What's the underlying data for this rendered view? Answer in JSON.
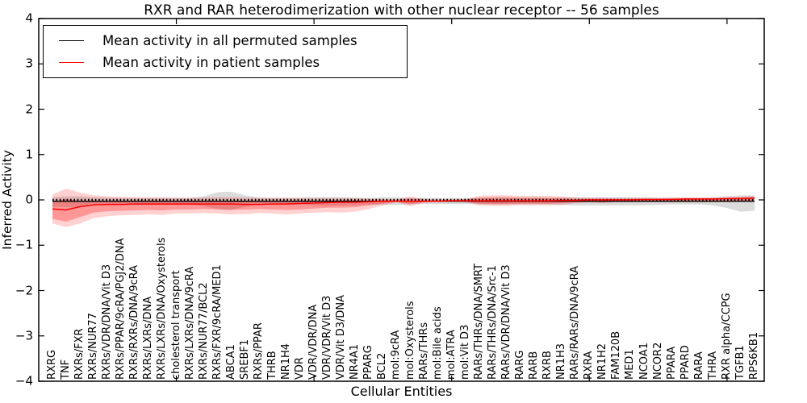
{
  "chart_data": {
    "type": "line",
    "title": "RXR and RAR heterodimerization with other nuclear receptor -- 56 samples",
    "xlabel": "Cellular Entities",
    "ylabel": "Inferred Activity",
    "ylim": [
      -4,
      4
    ],
    "ytick_labels": [
      "4",
      "3",
      "2",
      "1",
      "0",
      "−1",
      "−2",
      "−3",
      "−4"
    ],
    "ytick_values": [
      4,
      3,
      2,
      1,
      0,
      -1,
      -2,
      -3,
      -4
    ],
    "xtick_positions": [
      10,
      20,
      30,
      40,
      50
    ],
    "grid": false,
    "legend_position": "upper left",
    "categories": [
      "RXRG",
      "TNF",
      "RXRs/FXR",
      "RXRs/NUR77",
      "RXRs/VDR/DNA/Vit D3",
      "RXRs/PPAR/9cRA/PGJ2/DNA",
      "RXRs/RXRs/DNA/9cRA",
      "RXRs/LXRs/DNA",
      "RXRs/LXRs/DNA/Oxysterols",
      "cholesterol transport",
      "RXRs/LXRs/DNA/9cRA",
      "RXRs/NUR77/BCL2",
      "RXRs/FXR/9cRA/MED1",
      "ABCA1",
      "SREBF1",
      "RXRs/PPAR",
      "THRB",
      "NR1H4",
      "VDR",
      "VDR/VDR/DNA",
      "VDR/VDR/Vit D3",
      "VDR/Vit D3/DNA",
      "NR4A1",
      "PPARG",
      "BCL2",
      "mol:9cRA",
      "mol:Oxysterols",
      "RARs/THRs",
      "mol:Bile acids",
      "mol:ATRA",
      "mol:Vit D3",
      "RARs/THRs/DNA/SMRT",
      "RARs/THRs/DNA/Src-1",
      "RARs/VDR/DNA/Vit D3",
      "RARG",
      "RARB",
      "RXRB",
      "NR1H3",
      "RARs/RARs/DNA/9cRA",
      "RXRA",
      "NR1H2",
      "FAM120B",
      "MED1",
      "NCOA1",
      "NCOR2",
      "PPARA",
      "PPARD",
      "RARA",
      "THRA",
      "RXR alpha/CCPG",
      "TGFB1",
      "RPS6KB1"
    ],
    "series": [
      {
        "name": "Mean activity in all permuted samples",
        "color": "#000000",
        "values": [
          -0.03,
          -0.03,
          -0.03,
          -0.03,
          -0.03,
          -0.03,
          -0.03,
          -0.03,
          -0.03,
          -0.03,
          -0.03,
          -0.03,
          -0.03,
          -0.03,
          -0.03,
          -0.03,
          -0.03,
          -0.03,
          -0.03,
          -0.03,
          -0.03,
          -0.03,
          -0.03,
          -0.03,
          -0.03,
          -0.03,
          -0.03,
          -0.03,
          -0.03,
          -0.03,
          -0.03,
          -0.03,
          -0.03,
          -0.03,
          -0.03,
          -0.03,
          -0.03,
          -0.03,
          -0.03,
          -0.03,
          -0.03,
          -0.03,
          -0.03,
          -0.03,
          -0.03,
          -0.03,
          -0.03,
          -0.03,
          -0.03,
          -0.03,
          -0.03,
          -0.03
        ]
      },
      {
        "name": "Mean activity in patient samples",
        "color": "#ff0000",
        "values": [
          -0.2,
          -0.22,
          -0.15,
          -0.11,
          -0.1,
          -0.1,
          -0.09,
          -0.09,
          -0.09,
          -0.09,
          -0.09,
          -0.09,
          -0.09,
          -0.09,
          -0.1,
          -0.1,
          -0.09,
          -0.09,
          -0.08,
          -0.07,
          -0.06,
          -0.05,
          -0.05,
          -0.04,
          -0.03,
          -0.03,
          -0.03,
          -0.03,
          -0.03,
          -0.02,
          -0.02,
          -0.02,
          -0.02,
          -0.02,
          -0.02,
          -0.02,
          -0.02,
          -0.01,
          -0.01,
          0.0,
          0.0,
          0.0,
          0.0,
          0.01,
          0.01,
          0.01,
          0.02,
          0.02,
          0.02,
          0.03,
          0.03,
          0.04
        ]
      }
    ],
    "bands": [
      {
        "name": "permuted-samples-spread",
        "color": "#7f7f7f",
        "opacity": 0.28,
        "upper": [
          0.06,
          0.08,
          0.08,
          0.06,
          0.05,
          0.04,
          0.04,
          0.04,
          0.04,
          0.04,
          0.04,
          0.08,
          0.17,
          0.18,
          0.1,
          0.05,
          0.04,
          0.04,
          0.05,
          0.06,
          0.06,
          0.06,
          0.05,
          0.04,
          0.06,
          0.06,
          0.04,
          0.04,
          0.04,
          0.04,
          0.04,
          0.04,
          0.04,
          0.04,
          0.04,
          0.04,
          0.04,
          0.05,
          0.06,
          0.06,
          0.06,
          0.06,
          0.06,
          0.06,
          0.05,
          0.05,
          0.05,
          0.05,
          0.06,
          0.08,
          0.1,
          0.1
        ],
        "lower": [
          -0.15,
          -0.16,
          -0.15,
          -0.12,
          -0.1,
          -0.1,
          -0.1,
          -0.1,
          -0.1,
          -0.1,
          -0.1,
          -0.14,
          -0.2,
          -0.22,
          -0.15,
          -0.1,
          -0.1,
          -0.1,
          -0.1,
          -0.12,
          -0.13,
          -0.12,
          -0.11,
          -0.1,
          -0.11,
          -0.11,
          -0.1,
          -0.09,
          -0.09,
          -0.09,
          -0.09,
          -0.1,
          -0.1,
          -0.1,
          -0.1,
          -0.1,
          -0.1,
          -0.11,
          -0.12,
          -0.12,
          -0.12,
          -0.12,
          -0.12,
          -0.12,
          -0.11,
          -0.1,
          -0.1,
          -0.1,
          -0.12,
          -0.18,
          -0.26,
          -0.24
        ]
      },
      {
        "name": "patient-samples-spread-outer",
        "color": "#ff0000",
        "opacity": 0.18,
        "upper": [
          0.12,
          0.25,
          0.16,
          0.1,
          0.08,
          0.07,
          0.06,
          0.06,
          0.06,
          0.05,
          0.05,
          0.05,
          0.06,
          0.06,
          0.05,
          0.05,
          0.05,
          0.05,
          0.04,
          0.04,
          0.04,
          0.04,
          0.04,
          0.03,
          0.02,
          0.01,
          0.08,
          0.02,
          0.01,
          0.01,
          0.02,
          0.09,
          0.1,
          0.1,
          0.09,
          0.09,
          0.09,
          0.08,
          0.05,
          0.04,
          0.05,
          0.04,
          0.04,
          0.04,
          0.04,
          0.05,
          0.05,
          0.05,
          0.05,
          0.06,
          0.07,
          0.08
        ],
        "lower": [
          -0.52,
          -0.6,
          -0.52,
          -0.4,
          -0.36,
          -0.34,
          -0.33,
          -0.32,
          -0.33,
          -0.3,
          -0.3,
          -0.29,
          -0.3,
          -0.32,
          -0.31,
          -0.29,
          -0.3,
          -0.32,
          -0.3,
          -0.28,
          -0.27,
          -0.28,
          -0.26,
          -0.2,
          -0.12,
          -0.05,
          -0.14,
          -0.06,
          -0.04,
          -0.04,
          -0.05,
          -0.12,
          -0.13,
          -0.13,
          -0.12,
          -0.12,
          -0.12,
          -0.11,
          -0.07,
          -0.06,
          -0.07,
          -0.05,
          -0.05,
          -0.05,
          -0.05,
          -0.05,
          -0.05,
          -0.05,
          -0.05,
          -0.05,
          -0.04,
          -0.04
        ]
      },
      {
        "name": "patient-samples-spread-inner",
        "color": "#ff0000",
        "opacity": 0.28,
        "upper": [
          -0.04,
          0.02,
          -0.02,
          -0.02,
          -0.02,
          -0.02,
          -0.02,
          -0.02,
          -0.02,
          -0.02,
          -0.02,
          -0.02,
          -0.02,
          -0.02,
          -0.02,
          -0.02,
          -0.02,
          -0.02,
          -0.02,
          -0.02,
          -0.01,
          -0.01,
          -0.01,
          -0.01,
          0.0,
          0.0,
          0.03,
          0.0,
          0.0,
          0.0,
          0.01,
          0.05,
          0.06,
          0.06,
          0.05,
          0.05,
          0.05,
          0.04,
          0.02,
          0.02,
          0.02,
          0.02,
          0.02,
          0.02,
          0.02,
          0.03,
          0.03,
          0.03,
          0.03,
          0.04,
          0.05,
          0.06
        ],
        "lower": [
          -0.42,
          -0.48,
          -0.38,
          -0.28,
          -0.25,
          -0.24,
          -0.23,
          -0.22,
          -0.23,
          -0.21,
          -0.21,
          -0.2,
          -0.21,
          -0.22,
          -0.21,
          -0.2,
          -0.21,
          -0.22,
          -0.21,
          -0.19,
          -0.17,
          -0.17,
          -0.16,
          -0.12,
          -0.08,
          -0.04,
          -0.09,
          -0.05,
          -0.03,
          -0.03,
          -0.04,
          -0.08,
          -0.09,
          -0.09,
          -0.08,
          -0.08,
          -0.08,
          -0.07,
          -0.05,
          -0.04,
          -0.05,
          -0.04,
          -0.04,
          -0.04,
          -0.04,
          -0.04,
          -0.04,
          -0.04,
          -0.04,
          -0.03,
          -0.03,
          -0.02
        ]
      }
    ]
  }
}
